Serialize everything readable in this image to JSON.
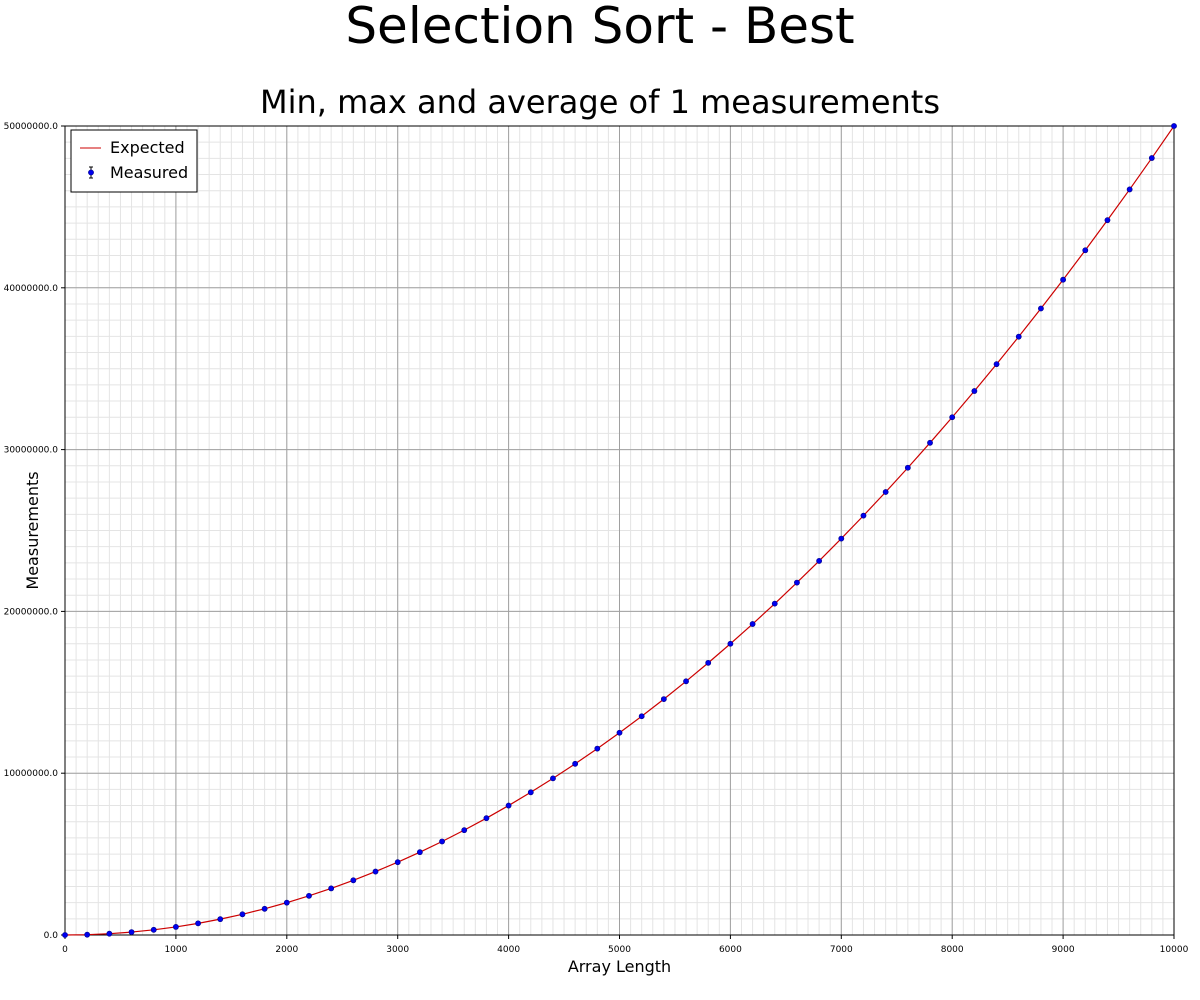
{
  "chart_data": {
    "type": "line",
    "title": "Selection Sort - Best",
    "subtitle": "Min, max and average of 1 measurements",
    "xlabel": "Array Length",
    "ylabel": "Measurements",
    "xlim": [
      0,
      10000
    ],
    "ylim": [
      0,
      50000000
    ],
    "x_ticks": [
      0,
      1000,
      2000,
      3000,
      4000,
      5000,
      6000,
      7000,
      8000,
      9000,
      10000
    ],
    "x_tick_labels": [
      "0",
      "1000",
      "2000",
      "3000",
      "4000",
      "5000",
      "6000",
      "7000",
      "8000",
      "9000",
      "10000"
    ],
    "y_ticks": [
      0,
      10000000,
      20000000,
      30000000,
      40000000,
      50000000
    ],
    "y_tick_labels": [
      "0.0",
      "10000000.0",
      "20000000.0",
      "30000000.0",
      "40000000.0",
      "50000000.0"
    ],
    "grid": true,
    "legend_position": "top-left",
    "series": [
      {
        "name": "Expected",
        "style": "line",
        "color": "#cc0000",
        "x": [
          0,
          200,
          400,
          600,
          800,
          1000,
          1200,
          1400,
          1600,
          1800,
          2000,
          2200,
          2400,
          2600,
          2800,
          3000,
          3200,
          3400,
          3600,
          3800,
          4000,
          4200,
          4400,
          4600,
          4800,
          5000,
          5200,
          5400,
          5600,
          5800,
          6000,
          6200,
          6400,
          6600,
          6800,
          7000,
          7200,
          7400,
          7600,
          7800,
          8000,
          8200,
          8400,
          8600,
          8800,
          9000,
          9200,
          9400,
          9600,
          9800,
          10000
        ],
        "y": [
          0,
          20000,
          80000,
          180000,
          320000,
          500000,
          720000,
          980000,
          1280000,
          1620000,
          2000000,
          2420000,
          2880000,
          3380000,
          3920000,
          4500000,
          5120000,
          5780000,
          6480000,
          7220000,
          8000000,
          8820000,
          9680000,
          10580000,
          11520000,
          12500000,
          13520000,
          14580000,
          15680000,
          16820000,
          18000000,
          19220000,
          20480000,
          21780000,
          23120000,
          24500000,
          25920000,
          27380000,
          28880000,
          30420000,
          32000000,
          33620000,
          35280000,
          36980000,
          38720000,
          40500000,
          42320000,
          44180000,
          46080000,
          48020000,
          50000000
        ]
      },
      {
        "name": "Measured",
        "style": "points",
        "color": "#0000ee",
        "x": [
          0,
          200,
          400,
          600,
          800,
          1000,
          1200,
          1400,
          1600,
          1800,
          2000,
          2200,
          2400,
          2600,
          2800,
          3000,
          3200,
          3400,
          3600,
          3800,
          4000,
          4200,
          4400,
          4600,
          4800,
          5000,
          5200,
          5400,
          5600,
          5800,
          6000,
          6200,
          6400,
          6600,
          6800,
          7000,
          7200,
          7400,
          7600,
          7800,
          8000,
          8200,
          8400,
          8600,
          8800,
          9000,
          9200,
          9400,
          9600,
          9800,
          10000
        ],
        "y": [
          0,
          20000,
          80000,
          180000,
          320000,
          500000,
          720000,
          980000,
          1280000,
          1620000,
          2000000,
          2420000,
          2880000,
          3380000,
          3920000,
          4500000,
          5120000,
          5780000,
          6480000,
          7220000,
          8000000,
          8820000,
          9680000,
          10580000,
          11520000,
          12500000,
          13520000,
          14580000,
          15680000,
          16820000,
          18000000,
          19220000,
          20480000,
          21780000,
          23120000,
          24500000,
          25920000,
          27380000,
          28880000,
          30420000,
          32000000,
          33620000,
          35280000,
          36980000,
          38720000,
          40500000,
          42320000,
          44180000,
          46080000,
          48020000,
          50000000
        ]
      }
    ]
  }
}
